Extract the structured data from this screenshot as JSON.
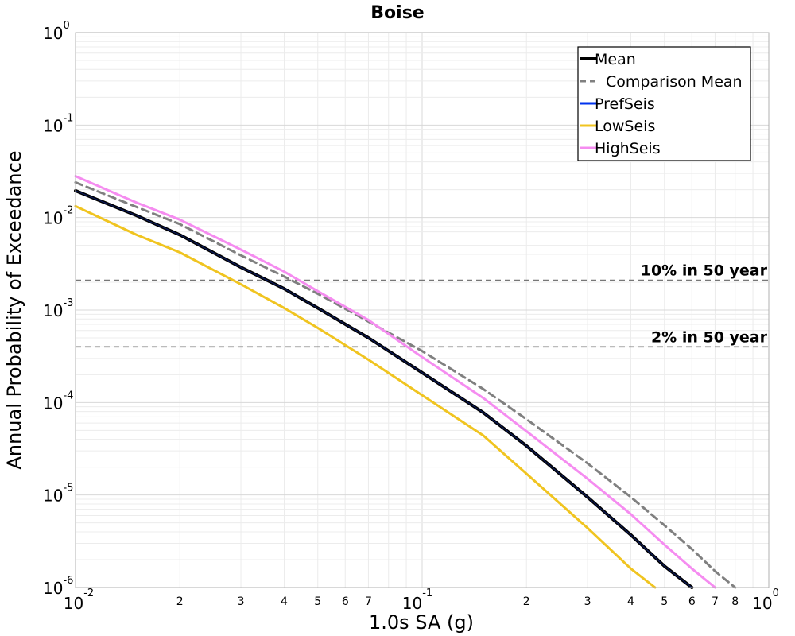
{
  "chart_data": {
    "type": "line",
    "title": "Boise",
    "xlabel": "1.0s SA (g)",
    "ylabel": "Annual Probability of Exceedance",
    "xscale": "log",
    "yscale": "log",
    "xlim": [
      0.01,
      1
    ],
    "ylim": [
      1e-06,
      1
    ],
    "grid": true,
    "legend_position": "top-right",
    "x_major_ticks": [
      {
        "value": 0.01,
        "base": "10",
        "exp": "-2"
      },
      {
        "value": 0.1,
        "base": "10",
        "exp": "-1"
      },
      {
        "value": 1,
        "base": "10",
        "exp": "0"
      }
    ],
    "x_minor_ticks": [
      {
        "value": 0.02,
        "label": "2"
      },
      {
        "value": 0.03,
        "label": "3"
      },
      {
        "value": 0.04,
        "label": "4"
      },
      {
        "value": 0.05,
        "label": "5"
      },
      {
        "value": 0.06,
        "label": "6"
      },
      {
        "value": 0.07,
        "label": "7"
      },
      {
        "value": 0.2,
        "label": "2"
      },
      {
        "value": 0.3,
        "label": "3"
      },
      {
        "value": 0.4,
        "label": "4"
      },
      {
        "value": 0.5,
        "label": "5"
      },
      {
        "value": 0.6,
        "label": "6"
      },
      {
        "value": 0.7,
        "label": "7"
      },
      {
        "value": 0.8,
        "label": "8"
      }
    ],
    "y_major_ticks": [
      {
        "value": 1,
        "base": "10",
        "exp": "0"
      },
      {
        "value": 0.1,
        "base": "10",
        "exp": "-1"
      },
      {
        "value": 0.01,
        "base": "10",
        "exp": "-2"
      },
      {
        "value": 0.001,
        "base": "10",
        "exp": "-3"
      },
      {
        "value": 0.0001,
        "base": "10",
        "exp": "-4"
      },
      {
        "value": 1e-05,
        "base": "10",
        "exp": "-5"
      },
      {
        "value": 1e-06,
        "base": "10",
        "exp": "-6"
      }
    ],
    "reference_lines": [
      {
        "y": 0.0021,
        "label": "10% in 50 year"
      },
      {
        "y": 0.0004,
        "label": "2% in 50 year"
      }
    ],
    "series": [
      {
        "name": "Mean",
        "color": "#000000",
        "style": "solid",
        "width": 4,
        "x": [
          0.01,
          0.015,
          0.02,
          0.03,
          0.04,
          0.05,
          0.07,
          0.1,
          0.15,
          0.2,
          0.3,
          0.4,
          0.5,
          0.6
        ],
        "y": [
          0.0195,
          0.0105,
          0.0065,
          0.0029,
          0.0017,
          0.00105,
          0.0005,
          0.00021,
          7.8e-05,
          3.4e-05,
          9.5e-06,
          3.7e-06,
          1.7e-06,
          1e-06
        ]
      },
      {
        "name": "Comparison Mean",
        "color": "#808080",
        "style": "dashed",
        "width": 3,
        "x": [
          0.01,
          0.015,
          0.02,
          0.03,
          0.04,
          0.05,
          0.07,
          0.1,
          0.15,
          0.2,
          0.3,
          0.4,
          0.5,
          0.6,
          0.7,
          0.8
        ],
        "y": [
          0.024,
          0.013,
          0.0085,
          0.0039,
          0.0023,
          0.0015,
          0.00075,
          0.00036,
          0.00014,
          6.6e-05,
          2.2e-05,
          9.5e-06,
          4.7e-06,
          2.6e-06,
          1.5e-06,
          1e-06
        ]
      },
      {
        "name": "PrefSeis",
        "color": "#0033ee",
        "style": "solid",
        "width": 3,
        "x": [
          0.01,
          0.015,
          0.02,
          0.03,
          0.04,
          0.05,
          0.07,
          0.1,
          0.15,
          0.2,
          0.3,
          0.4,
          0.5,
          0.6
        ],
        "y": [
          0.0195,
          0.0105,
          0.0065,
          0.0029,
          0.0017,
          0.00105,
          0.0005,
          0.00021,
          7.8e-05,
          3.4e-05,
          9.5e-06,
          3.7e-06,
          1.7e-06,
          1e-06
        ]
      },
      {
        "name": "LowSeis",
        "color": "#f0c420",
        "style": "solid",
        "width": 3,
        "x": [
          0.01,
          0.015,
          0.02,
          0.03,
          0.04,
          0.05,
          0.07,
          0.1,
          0.15,
          0.2,
          0.3,
          0.4,
          0.47
        ],
        "y": [
          0.0133,
          0.0065,
          0.0042,
          0.0019,
          0.00105,
          0.00064,
          0.00029,
          0.00012,
          4.4e-05,
          1.7e-05,
          4.4e-06,
          1.6e-06,
          1e-06
        ]
      },
      {
        "name": "HighSeis",
        "color": "#f58cf0",
        "style": "solid",
        "width": 3,
        "x": [
          0.01,
          0.015,
          0.02,
          0.03,
          0.04,
          0.05,
          0.07,
          0.1,
          0.15,
          0.2,
          0.3,
          0.4,
          0.5,
          0.6,
          0.7
        ],
        "y": [
          0.028,
          0.0145,
          0.0095,
          0.0045,
          0.0026,
          0.0016,
          0.00078,
          0.00031,
          0.000112,
          4.9e-05,
          1.5e-05,
          6.2e-06,
          2.9e-06,
          1.6e-06,
          1e-06
        ]
      }
    ]
  }
}
